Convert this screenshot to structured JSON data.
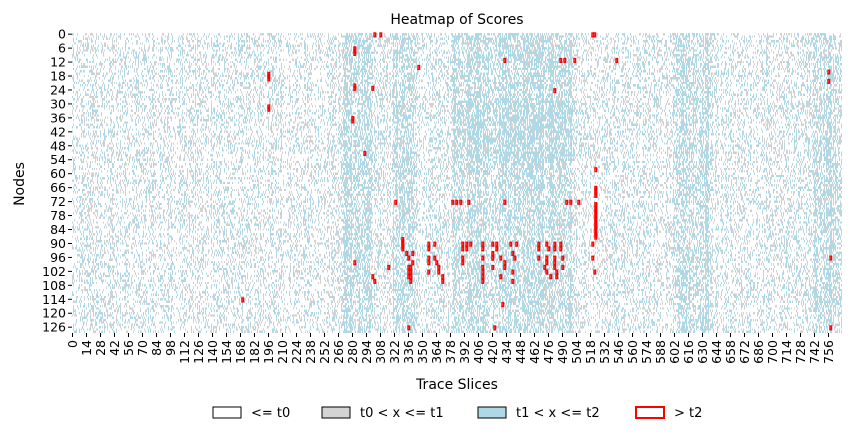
{
  "chart_data": {
    "type": "heatmap",
    "title": "Heatmap of Scores",
    "xlabel": "Trace Slices",
    "ylabel": "Nodes",
    "x_range": [
      0,
      770
    ],
    "y_range": [
      0,
      129
    ],
    "x_ticks": [
      0,
      14,
      28,
      42,
      56,
      70,
      84,
      98,
      112,
      126,
      140,
      154,
      168,
      182,
      196,
      210,
      224,
      238,
      252,
      266,
      280,
      294,
      308,
      322,
      336,
      350,
      364,
      378,
      392,
      406,
      420,
      434,
      448,
      462,
      476,
      490,
      504,
      518,
      532,
      546,
      560,
      574,
      588,
      602,
      616,
      630,
      644,
      658,
      672,
      686,
      700,
      714,
      728,
      742,
      756
    ],
    "y_ticks": [
      0,
      6,
      12,
      18,
      24,
      30,
      36,
      42,
      48,
      54,
      60,
      66,
      72,
      78,
      84,
      90,
      96,
      102,
      108,
      114,
      120,
      126
    ],
    "legend": {
      "placement": "bottom",
      "entries": [
        {
          "label": "<= t0",
          "fill": "#ffffff",
          "edge": "#000000"
        },
        {
          "label": "t0 < x <= t1",
          "fill": "#d3d3d3",
          "edge": "#000000"
        },
        {
          "label": "t1 < x <= t2",
          "fill": "#add8e6",
          "edge": "#000000"
        },
        {
          "label": "> t2",
          "fill": "#ffffff",
          "edge": "#ff0000"
        }
      ]
    },
    "colors": {
      "level0": "#ffffff",
      "level1": "#d3d3d3",
      "level2": "#add8e6",
      "level3": "#ff0000"
    },
    "level3_cells": [
      [
        0,
        302
      ],
      [
        0,
        308
      ],
      [
        0,
        520
      ],
      [
        0,
        522
      ],
      [
        6,
        282
      ],
      [
        7,
        282
      ],
      [
        8,
        282
      ],
      [
        11,
        432
      ],
      [
        11,
        488
      ],
      [
        11,
        492
      ],
      [
        11,
        502
      ],
      [
        11,
        544
      ],
      [
        14,
        346
      ],
      [
        16,
        756
      ],
      [
        17,
        196
      ],
      [
        18,
        196
      ],
      [
        19,
        196
      ],
      [
        20,
        756
      ],
      [
        22,
        282
      ],
      [
        23,
        282
      ],
      [
        23,
        300
      ],
      [
        24,
        482
      ],
      [
        31,
        196
      ],
      [
        32,
        196
      ],
      [
        36,
        280
      ],
      [
        37,
        280
      ],
      [
        51,
        292
      ],
      [
        58,
        523
      ],
      [
        66,
        523
      ],
      [
        67,
        523
      ],
      [
        68,
        523
      ],
      [
        69,
        523
      ],
      [
        72,
        323
      ],
      [
        72,
        380
      ],
      [
        72,
        384
      ],
      [
        72,
        388
      ],
      [
        72,
        396
      ],
      [
        72,
        432
      ],
      [
        72,
        494
      ],
      [
        72,
        498
      ],
      [
        72,
        506
      ],
      [
        73,
        523
      ],
      [
        74,
        523
      ],
      [
        75,
        523
      ],
      [
        76,
        523
      ],
      [
        77,
        523
      ],
      [
        78,
        523
      ],
      [
        79,
        523
      ],
      [
        80,
        523
      ],
      [
        81,
        523
      ],
      [
        82,
        523
      ],
      [
        83,
        523
      ],
      [
        84,
        523
      ],
      [
        85,
        523
      ],
      [
        86,
        523
      ],
      [
        87,
        523
      ],
      [
        88,
        330
      ],
      [
        89,
        330
      ],
      [
        90,
        330
      ],
      [
        90,
        356
      ],
      [
        90,
        362
      ],
      [
        90,
        390
      ],
      [
        90,
        394
      ],
      [
        90,
        398
      ],
      [
        90,
        410
      ],
      [
        90,
        420
      ],
      [
        90,
        424
      ],
      [
        90,
        438
      ],
      [
        90,
        444
      ],
      [
        90,
        466
      ],
      [
        90,
        474
      ],
      [
        90,
        482
      ],
      [
        90,
        488
      ],
      [
        90,
        520
      ],
      [
        91,
        330
      ],
      [
        92,
        330
      ],
      [
        92,
        356
      ],
      [
        92,
        390
      ],
      [
        92,
        394
      ],
      [
        92,
        410
      ],
      [
        92,
        424
      ],
      [
        92,
        466
      ],
      [
        92,
        476
      ],
      [
        92,
        482
      ],
      [
        92,
        488
      ],
      [
        94,
        334
      ],
      [
        94,
        340
      ],
      [
        94,
        420
      ],
      [
        94,
        440
      ],
      [
        96,
        336
      ],
      [
        96,
        356
      ],
      [
        96,
        362
      ],
      [
        96,
        390
      ],
      [
        96,
        410
      ],
      [
        96,
        420
      ],
      [
        96,
        428
      ],
      [
        96,
        442
      ],
      [
        96,
        466
      ],
      [
        96,
        474
      ],
      [
        96,
        482
      ],
      [
        96,
        490
      ],
      [
        96,
        520
      ],
      [
        96,
        758
      ],
      [
        98,
        282
      ],
      [
        98,
        340
      ],
      [
        98,
        356
      ],
      [
        98,
        364
      ],
      [
        98,
        390
      ],
      [
        98,
        432
      ],
      [
        98,
        474
      ],
      [
        98,
        482
      ],
      [
        100,
        316
      ],
      [
        100,
        336
      ],
      [
        100,
        338
      ],
      [
        100,
        366
      ],
      [
        100,
        410
      ],
      [
        100,
        420
      ],
      [
        100,
        432
      ],
      [
        100,
        472
      ],
      [
        100,
        482
      ],
      [
        100,
        490
      ],
      [
        102,
        336
      ],
      [
        102,
        338
      ],
      [
        102,
        356
      ],
      [
        102,
        366
      ],
      [
        102,
        410
      ],
      [
        102,
        440
      ],
      [
        102,
        474
      ],
      [
        102,
        484
      ],
      [
        102,
        522
      ],
      [
        104,
        300
      ],
      [
        104,
        336
      ],
      [
        104,
        338
      ],
      [
        104,
        370
      ],
      [
        104,
        410
      ],
      [
        104,
        428
      ],
      [
        104,
        478
      ],
      [
        104,
        484
      ],
      [
        106,
        302
      ],
      [
        106,
        338
      ],
      [
        106,
        370
      ],
      [
        106,
        410
      ],
      [
        106,
        440
      ],
      [
        114,
        170
      ],
      [
        116,
        430
      ],
      [
        126,
        336
      ],
      [
        126,
        422
      ],
      [
        126,
        758
      ]
    ]
  }
}
